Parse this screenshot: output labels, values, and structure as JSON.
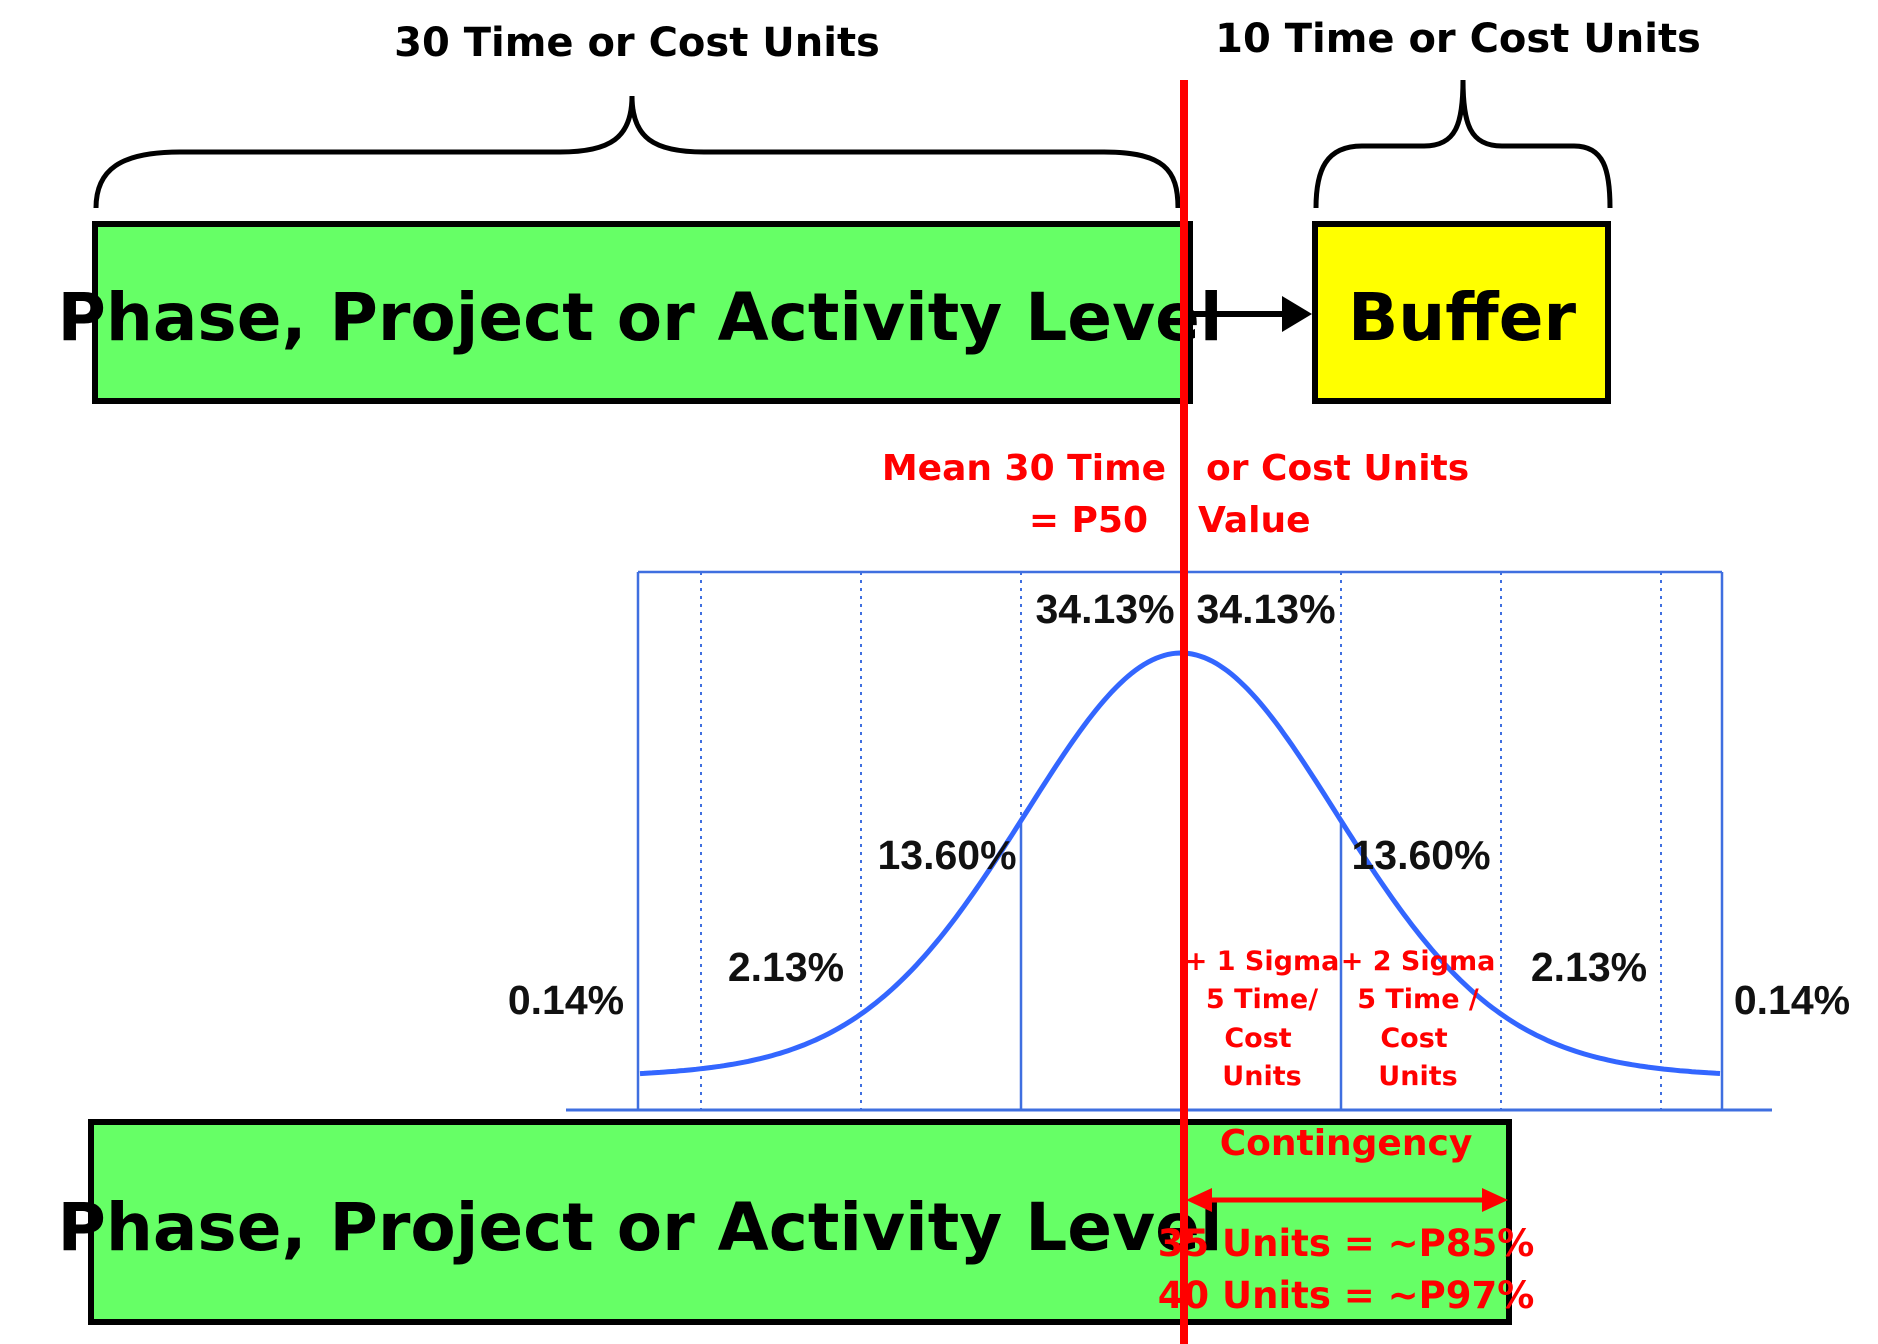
{
  "top": {
    "brace_left_label": "30 Time or Cost Units",
    "brace_right_label": "10 Time or Cost Units",
    "phase_box_label": "Phase, Project or Activity Level",
    "buffer_box_label": "Buffer"
  },
  "mean": {
    "line1_left": "Mean 30 Time",
    "line1_right": "or Cost Units",
    "line2_left": "= P50",
    "line2_right": "Value"
  },
  "distribution": {
    "percentages": [
      "0.14%",
      "2.13%",
      "13.60%",
      "34.13%",
      "34.13%",
      "13.60%",
      "2.13%",
      "0.14%"
    ],
    "sigma1": [
      "+ 1 Sigma",
      "5 Time/",
      "Cost",
      "Units"
    ],
    "sigma2": [
      "+ 2 Sigma",
      "5 Time /",
      "Cost",
      "Units"
    ]
  },
  "bottom": {
    "phase_box_label": "Phase, Project or Activity Level",
    "contingency_label": "Contingency",
    "p85_label": "35 Units = ~P85%",
    "p97_label": "40 Units = ~P97%"
  },
  "colors": {
    "green": "#66ff66",
    "yellow": "#ffff00",
    "red": "#ff0000",
    "blue": "#3366ff",
    "frame_blue": "#3f6fe0"
  }
}
